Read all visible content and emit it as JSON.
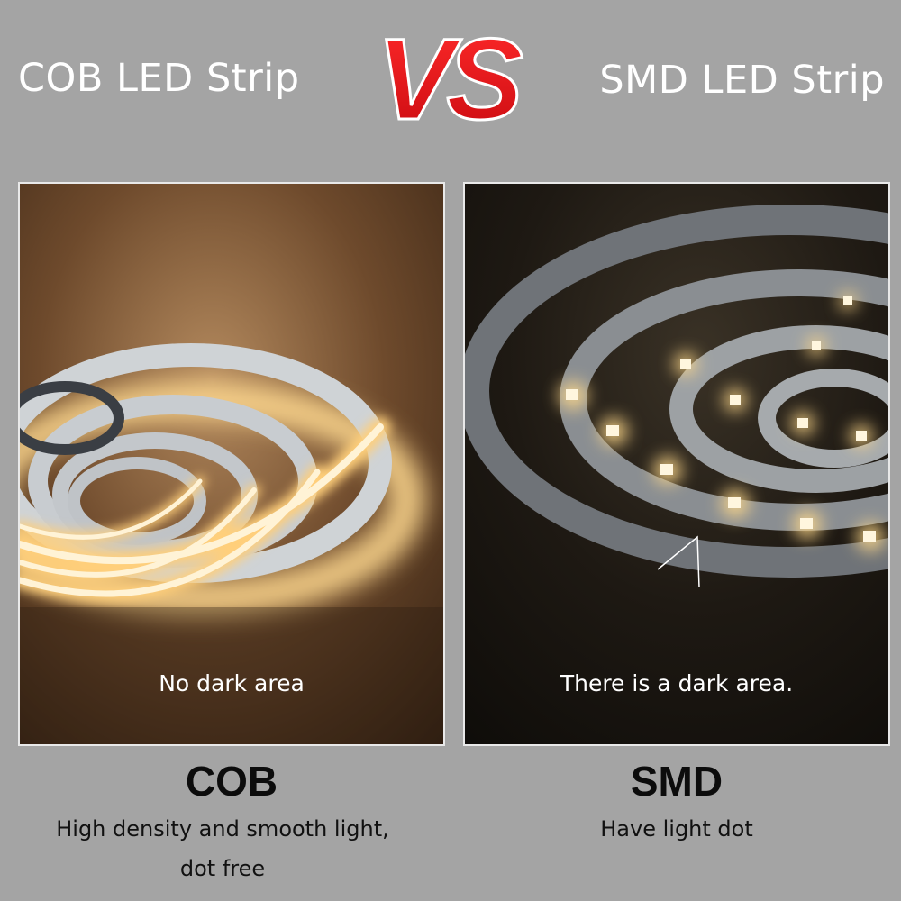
{
  "header": {
    "left_title": "COB LED Strip",
    "vs_text": "VS",
    "right_title": "SMD LED Strip"
  },
  "panels": {
    "cob": {
      "caption": "No dark area",
      "label": "COB",
      "description_line1": "High density and smooth light,",
      "description_line2": "dot free"
    },
    "smd": {
      "caption": "There is a dark area.",
      "label": "SMD",
      "description_line1": "Have light dot"
    }
  },
  "colors": {
    "background": "#a4a4a4",
    "vs_red": "#e8121b",
    "glow_warm": "#ffd27a"
  }
}
